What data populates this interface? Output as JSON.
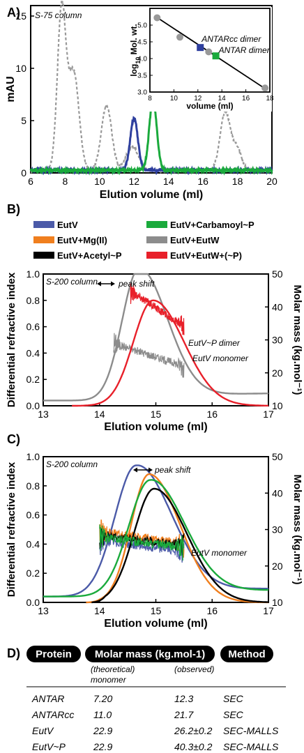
{
  "chart_data": [
    {
      "panel": "A)",
      "type": "line",
      "note": "S-75 column",
      "xlabel": "Elution volume (ml)",
      "ylabel": "mAU",
      "xlim": [
        6,
        20
      ],
      "ylim": [
        0,
        16
      ],
      "xticks": [
        "6",
        "8",
        "10",
        "12",
        "14",
        "16",
        "18",
        "20"
      ],
      "yticks": [
        "0",
        "5",
        "10",
        "15"
      ],
      "series": [
        {
          "color": "#999999",
          "dash": true,
          "peaks": [
            [
              7.8,
              15.5,
              0.25
            ],
            [
              8.5,
              9.4,
              0.3
            ],
            [
              10.4,
              6.2,
              0.3
            ],
            [
              11.9,
              2.3,
              0.35
            ],
            [
              17.3,
              5.6,
              0.3
            ],
            [
              18.0,
              2.0,
              0.25
            ]
          ]
        },
        {
          "color": "#2e3f9e",
          "peaks": [
            [
              12.0,
              5.0,
              0.22
            ]
          ]
        },
        {
          "color": "#1aaa3c",
          "peaks": [
            [
              13.1,
              6.7,
              0.22
            ]
          ]
        }
      ],
      "inset": {
        "type": "scatter",
        "xlabel": "volume (ml)",
        "ylabel_prefix": "log",
        "ylabel_sub": "10",
        "ylabel_suffix": "Mol. wt.",
        "xlim": [
          8,
          18
        ],
        "ylim": [
          3.0,
          5.5
        ],
        "xticks": [
          "8",
          "10",
          "12",
          "14",
          "16",
          "18"
        ],
        "yticks": [
          "3.0",
          "3.5",
          "4.0",
          "4.5",
          "5.0"
        ],
        "line": {
          "x": [
            8.5,
            17.7
          ],
          "y": [
            5.25,
            3.08
          ]
        },
        "standards": {
          "x": [
            8.6,
            10.5,
            12.9,
            17.6
          ],
          "y": [
            5.22,
            4.64,
            4.2,
            3.12
          ],
          "color": "#999999"
        },
        "points": [
          {
            "x": 12.2,
            "y": 4.33,
            "color": "#2e3f9e",
            "label": "ANTARcc dimer"
          },
          {
            "x": 13.5,
            "y": 4.08,
            "color": "#1aaa3c",
            "label": "ANTAR dimer"
          }
        ]
      }
    },
    {
      "panel": "B)",
      "type": "line",
      "note": "S-200 column",
      "xlabel": "Elution volume (ml)",
      "ylabel": "Differential refractive index",
      "y2label": "Molar mass (kg.mol⁻¹)",
      "xlim": [
        13,
        17
      ],
      "ylim": [
        0,
        1.0
      ],
      "y2lim": [
        10,
        50
      ],
      "xticks": [
        "13",
        "14",
        "15",
        "16",
        "17"
      ],
      "yticks": [
        "0.0",
        "0.2",
        "0.4",
        "0.6",
        "0.8",
        "1.0"
      ],
      "y2ticks": [
        "10",
        "20",
        "30",
        "40",
        "50"
      ],
      "annotations": [
        "peak shift",
        "EutV~P dimer",
        "EutV monomer"
      ],
      "series": [
        {
          "name": "EutV+EutW",
          "color": "#8c8c8c",
          "ri": {
            "center": 14.7,
            "height": 1.0,
            "sigma_left": 0.3,
            "sigma_right": 0.5,
            "baseline": 0.04,
            "tail": 0.06
          },
          "mass": {
            "x": [
              14.25,
              15.5
            ],
            "y": [
              29.0,
              22.0
            ]
          }
        },
        {
          "name": "EutV+EutW+(~P)",
          "color": "#e8202a",
          "ri": {
            "center": 14.95,
            "height": 0.8,
            "sigma_left": 0.35,
            "sigma_right": 0.55,
            "baseline": 0.0,
            "tail": 0.0,
            "start": 13.5
          },
          "mass": {
            "x": [
              14.55,
              15.5
            ],
            "y": [
              45.0,
              34.0
            ]
          }
        }
      ]
    },
    {
      "panel": "C)",
      "type": "line",
      "note": "S-200 column",
      "xlabel": "Elution volume (ml)",
      "ylabel": "Differential refractive index",
      "y2label": "Molar mass (kg.mol⁻¹)",
      "xlim": [
        13,
        17
      ],
      "ylim": [
        0,
        1.0
      ],
      "y2lim": [
        10,
        50
      ],
      "xticks": [
        "13",
        "14",
        "15",
        "16",
        "17"
      ],
      "yticks": [
        "0.0",
        "0.2",
        "0.4",
        "0.6",
        "0.8",
        "1.0"
      ],
      "y2ticks": [
        "10",
        "20",
        "30",
        "40",
        "50"
      ],
      "annotations": [
        "peak shift",
        "EutV monomer"
      ],
      "series": [
        {
          "name": "EutV",
          "color": "#4b5aa8",
          "ri": {
            "center": 14.65,
            "height": 0.9,
            "sigma_left": 0.38,
            "sigma_right": 0.62,
            "baseline": 0.04,
            "tail": 0.06
          },
          "mass": {
            "x": [
              14.0,
              15.5
            ],
            "y": [
              27.0,
              24.0
            ]
          }
        },
        {
          "name": "EutV+Mg(II)",
          "color": "#f07f1e",
          "ri": {
            "center": 14.88,
            "height": 0.88,
            "sigma_left": 0.32,
            "sigma_right": 0.55,
            "baseline": 0.0,
            "tail": 0.0,
            "start": 13.75
          },
          "mass": {
            "x": [
              14.0,
              15.5
            ],
            "y": [
              29.5,
              26.0
            ]
          }
        },
        {
          "name": "EutV+Acetyl~P",
          "color": "#000000",
          "ri": {
            "center": 14.97,
            "height": 0.78,
            "sigma_left": 0.36,
            "sigma_right": 0.58,
            "baseline": 0.0,
            "tail": 0.0,
            "start": 13.85
          },
          "mass": {
            "x": [
              14.0,
              15.5
            ],
            "y": [
              28.5,
              25.5
            ]
          }
        },
        {
          "name": "EutV+Carbamoyl~P",
          "color": "#1aaa3c",
          "ri": {
            "center": 14.9,
            "height": 0.8,
            "sigma_left": 0.38,
            "sigma_right": 0.6,
            "baseline": 0.04,
            "tail": 0.05
          },
          "mass": {
            "x": [
              14.0,
              15.5
            ],
            "y": [
              28.0,
              25.0
            ]
          }
        }
      ]
    }
  ],
  "panels": {
    "b_letter": "B)",
    "c_letter": "C)",
    "d_letter": "D)"
  },
  "legend": [
    {
      "name": "EutV",
      "color": "#4b5aa8"
    },
    {
      "name": "EutV+Carbamoyl~P",
      "color": "#1aaa3c"
    },
    {
      "name": "EutV+Mg(II)",
      "color": "#f07f1e"
    },
    {
      "name": "EutV+EutW",
      "color": "#8c8c8c"
    },
    {
      "name": "EutV+Acetyl~P",
      "color": "#000000"
    },
    {
      "name": "EutV+EutW+(~P)",
      "color": "#e8202a"
    }
  ],
  "table": {
    "headers": [
      "Protein",
      "Molar mass (kg.mol-1)",
      "Method"
    ],
    "subheaders": [
      "(theoretical)",
      "monomer",
      "(observed)"
    ],
    "rows": [
      [
        "ANTAR",
        "7.20",
        "12.3",
        "SEC"
      ],
      [
        "ANTARcc",
        "11.0",
        "21.7",
        "SEC"
      ],
      [
        "EutV",
        "22.9",
        "26.2±0.2",
        "SEC-MALLS"
      ],
      [
        "EutV~P",
        "22.9",
        "40.3±0.2",
        "SEC-MALLS"
      ]
    ]
  }
}
